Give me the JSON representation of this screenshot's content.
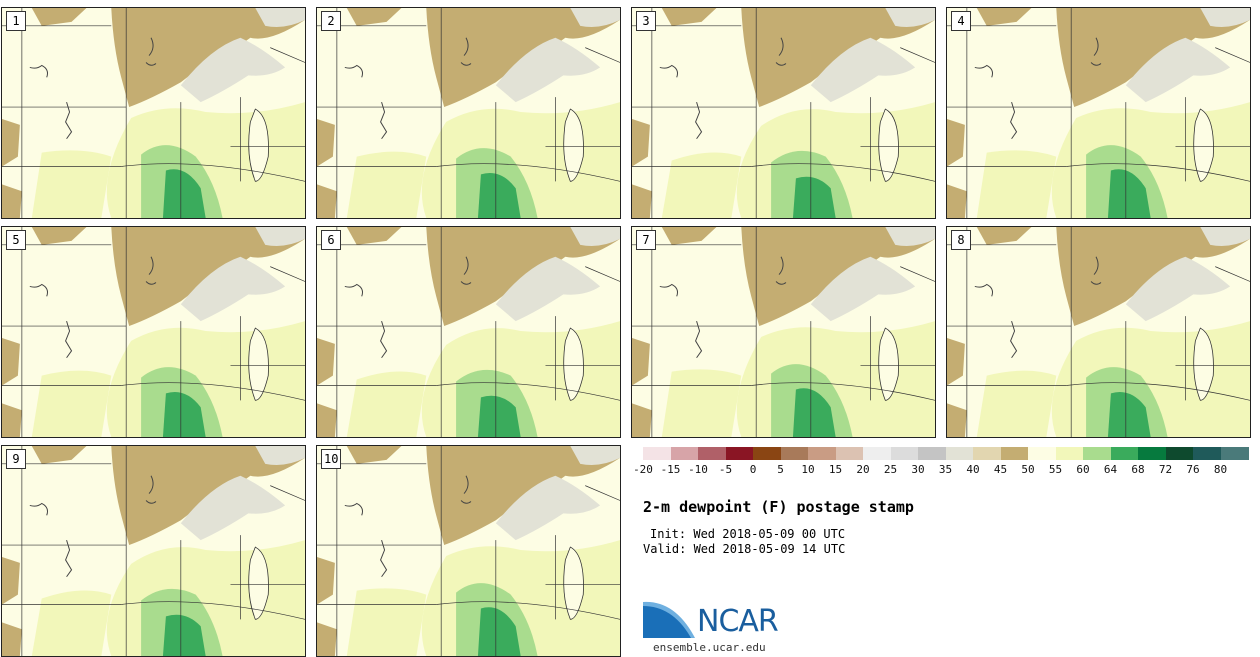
{
  "panels": [
    {
      "label": "1"
    },
    {
      "label": "2"
    },
    {
      "label": "3"
    },
    {
      "label": "4"
    },
    {
      "label": "5"
    },
    {
      "label": "6"
    },
    {
      "label": "7"
    },
    {
      "label": "8"
    },
    {
      "label": "9"
    },
    {
      "label": "10"
    }
  ],
  "legend": {
    "colors": [
      "#f4e3e6",
      "#d7a4a8",
      "#b06068",
      "#8a1524",
      "#8a4513",
      "#a87a5a",
      "#c99c84",
      "#dcc2b2",
      "#eeeeee",
      "#dcdcdc",
      "#c4c4c4",
      "#e2e2d6",
      "#e2d6b0",
      "#c4ad72",
      "#fdfde4",
      "#f2f7ba",
      "#a9dc8e",
      "#3aab5c",
      "#067a3e",
      "#0e4a2e",
      "#1f5a5a",
      "#4a7a7a"
    ],
    "ticks": [
      "-20",
      "-15",
      "-10",
      "-5",
      "0",
      "5",
      "10",
      "15",
      "20",
      "25",
      "30",
      "35",
      "40",
      "45",
      "50",
      "55",
      "60",
      "64",
      "68",
      "72",
      "76",
      "80"
    ]
  },
  "title": "2-m dewpoint (F) postage stamp",
  "init": "Init: Wed 2018-05-09 00 UTC",
  "valid": "Valid: Wed 2018-05-09 14 UTC",
  "logo": {
    "text": "NCAR",
    "url": "ensemble.ucar.edu"
  },
  "palette": {
    "dry_brown": "#c4ad72",
    "ice": "#e2e2d6",
    "cream": "#fdfde4",
    "light_green": "#f2f7ba",
    "green": "#a9dc8e",
    "dark_green": "#3aab5c"
  }
}
